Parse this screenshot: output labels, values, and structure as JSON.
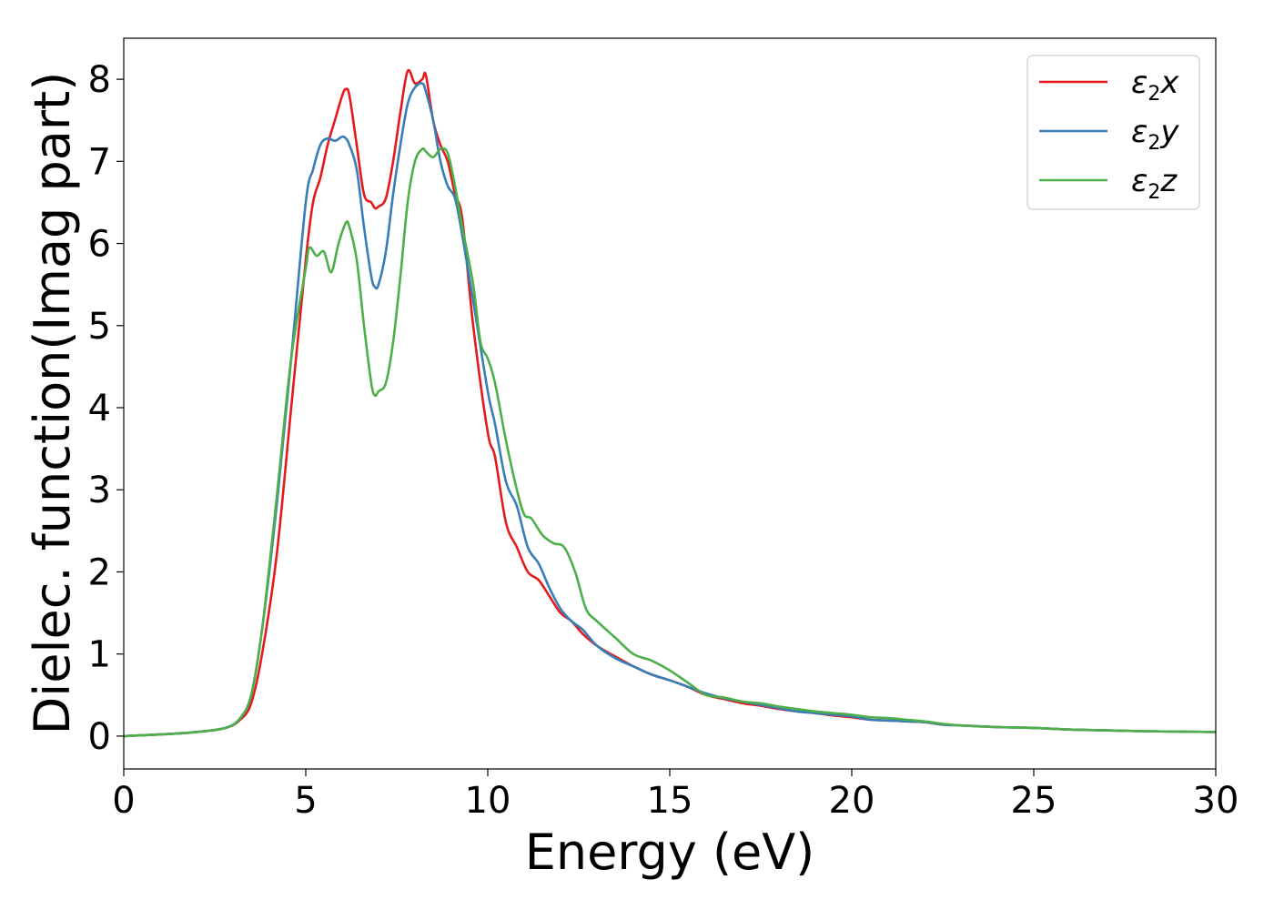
{
  "chart_data": {
    "type": "line",
    "title": "",
    "xlabel": "Energy (eV)",
    "ylabel": "Dielec. function(Imag part)",
    "xlim": [
      0,
      30
    ],
    "ylim": [
      -0.4,
      8.5
    ],
    "xticks": [
      0,
      5,
      10,
      15,
      20,
      25,
      30
    ],
    "yticks": [
      0,
      1,
      2,
      3,
      4,
      5,
      6,
      7,
      8
    ],
    "grid": false,
    "legend_position": "top-right",
    "series": [
      {
        "name": "ε2x",
        "legend": {
          "base": "ε",
          "sub": "2",
          "suffix": "x"
        },
        "color": "#e41a1c",
        "x": [
          0,
          1,
          2,
          2.8,
          3.2,
          3.5,
          3.8,
          4.2,
          4.6,
          5.0,
          5.2,
          5.4,
          5.6,
          5.8,
          6.0,
          6.1,
          6.2,
          6.4,
          6.6,
          6.8,
          6.9,
          7.0,
          7.2,
          7.4,
          7.6,
          7.8,
          8.0,
          8.2,
          8.3,
          8.5,
          8.7,
          8.9,
          9.1,
          9.3,
          9.6,
          10.0,
          10.2,
          10.5,
          10.8,
          11.1,
          11.4,
          11.7,
          12.0,
          12.3,
          12.6,
          13.0,
          13.5,
          14.0,
          14.5,
          15.0,
          15.5,
          16.0,
          16.5,
          17.0,
          17.5,
          18.0,
          18.5,
          19.0,
          19.5,
          20.0,
          20.5,
          21.0,
          21.5,
          22.0,
          22.5,
          23.0,
          24.0,
          25.0,
          26.0,
          27.0,
          28.0,
          29.0,
          30.0
        ],
        "y": [
          0.0,
          0.02,
          0.05,
          0.1,
          0.2,
          0.4,
          1.0,
          2.2,
          4.0,
          5.8,
          6.5,
          6.8,
          7.2,
          7.5,
          7.8,
          7.88,
          7.8,
          7.2,
          6.6,
          6.5,
          6.43,
          6.45,
          6.55,
          7.0,
          7.6,
          8.1,
          7.95,
          8.0,
          8.05,
          7.5,
          7.2,
          7.0,
          6.6,
          6.3,
          5.0,
          3.7,
          3.4,
          2.6,
          2.3,
          2.0,
          1.9,
          1.7,
          1.5,
          1.4,
          1.25,
          1.1,
          0.97,
          0.85,
          0.75,
          0.68,
          0.6,
          0.5,
          0.45,
          0.4,
          0.37,
          0.33,
          0.3,
          0.28,
          0.25,
          0.23,
          0.2,
          0.19,
          0.18,
          0.17,
          0.14,
          0.13,
          0.11,
          0.1,
          0.08,
          0.07,
          0.06,
          0.055,
          0.05
        ]
      },
      {
        "name": "ε2y",
        "legend": {
          "base": "ε",
          "sub": "2",
          "suffix": "y"
        },
        "color": "#377eb8",
        "x": [
          0,
          1,
          2,
          2.8,
          3.2,
          3.5,
          3.8,
          4.2,
          4.6,
          5.0,
          5.2,
          5.4,
          5.6,
          5.8,
          6.0,
          6.1,
          6.2,
          6.4,
          6.6,
          6.8,
          6.9,
          7.0,
          7.2,
          7.4,
          7.6,
          7.8,
          8.0,
          8.2,
          8.3,
          8.5,
          8.7,
          8.9,
          9.1,
          9.3,
          9.6,
          10.0,
          10.2,
          10.5,
          10.8,
          11.1,
          11.4,
          11.7,
          12.0,
          12.3,
          12.6,
          13.0,
          13.5,
          14.0,
          14.5,
          15.0,
          15.5,
          16.0,
          16.5,
          17.0,
          17.5,
          18.0,
          18.5,
          19.0,
          19.5,
          20.0,
          20.5,
          21.0,
          21.5,
          22.0,
          22.5,
          23.0,
          24.0,
          25.0,
          26.0,
          27.0,
          28.0,
          29.0,
          30.0
        ],
        "y": [
          0.0,
          0.02,
          0.05,
          0.1,
          0.22,
          0.5,
          1.3,
          2.8,
          4.6,
          6.5,
          6.9,
          7.2,
          7.28,
          7.25,
          7.3,
          7.28,
          7.2,
          6.9,
          6.2,
          5.6,
          5.47,
          5.5,
          5.9,
          6.6,
          7.2,
          7.7,
          7.9,
          7.95,
          7.85,
          7.5,
          7.0,
          6.7,
          6.55,
          6.1,
          5.3,
          4.2,
          3.8,
          3.1,
          2.8,
          2.3,
          2.1,
          1.8,
          1.55,
          1.4,
          1.3,
          1.1,
          0.95,
          0.85,
          0.75,
          0.68,
          0.6,
          0.52,
          0.46,
          0.42,
          0.38,
          0.34,
          0.3,
          0.28,
          0.26,
          0.24,
          0.2,
          0.19,
          0.18,
          0.17,
          0.14,
          0.13,
          0.11,
          0.1,
          0.08,
          0.07,
          0.06,
          0.055,
          0.05
        ]
      },
      {
        "name": "ε2z",
        "legend": {
          "base": "ε",
          "sub": "2",
          "suffix": "z"
        },
        "color": "#4daf4a",
        "x": [
          0,
          1,
          2,
          2.8,
          3.2,
          3.5,
          3.8,
          4.2,
          4.6,
          5.0,
          5.1,
          5.3,
          5.5,
          5.7,
          5.9,
          6.1,
          6.2,
          6.4,
          6.6,
          6.8,
          6.9,
          7.0,
          7.2,
          7.4,
          7.6,
          7.8,
          8.0,
          8.2,
          8.3,
          8.5,
          8.7,
          8.9,
          9.1,
          9.3,
          9.6,
          9.8,
          10.0,
          10.2,
          10.5,
          10.8,
          11.0,
          11.2,
          11.5,
          11.8,
          12.1,
          12.4,
          12.7,
          13.0,
          13.5,
          14.0,
          14.5,
          15.0,
          15.5,
          16.0,
          16.5,
          17.0,
          17.5,
          18.0,
          18.5,
          19.0,
          19.5,
          20.0,
          20.5,
          21.0,
          21.5,
          22.0,
          22.5,
          23.0,
          24.0,
          25.0,
          26.0,
          27.0,
          28.0,
          29.0,
          30.0
        ],
        "y": [
          0.0,
          0.02,
          0.05,
          0.1,
          0.22,
          0.5,
          1.3,
          2.9,
          4.6,
          5.7,
          5.95,
          5.85,
          5.9,
          5.65,
          6.0,
          6.25,
          6.2,
          5.8,
          5.0,
          4.3,
          4.15,
          4.2,
          4.3,
          4.8,
          5.6,
          6.5,
          7.0,
          7.15,
          7.12,
          7.05,
          7.15,
          7.1,
          6.7,
          6.2,
          5.5,
          4.8,
          4.6,
          4.3,
          3.6,
          3.0,
          2.7,
          2.65,
          2.45,
          2.35,
          2.3,
          2.0,
          1.55,
          1.4,
          1.2,
          1.0,
          0.92,
          0.8,
          0.65,
          0.5,
          0.47,
          0.42,
          0.4,
          0.36,
          0.33,
          0.3,
          0.28,
          0.26,
          0.23,
          0.22,
          0.2,
          0.18,
          0.15,
          0.13,
          0.11,
          0.1,
          0.08,
          0.07,
          0.06,
          0.055,
          0.05
        ]
      }
    ]
  }
}
